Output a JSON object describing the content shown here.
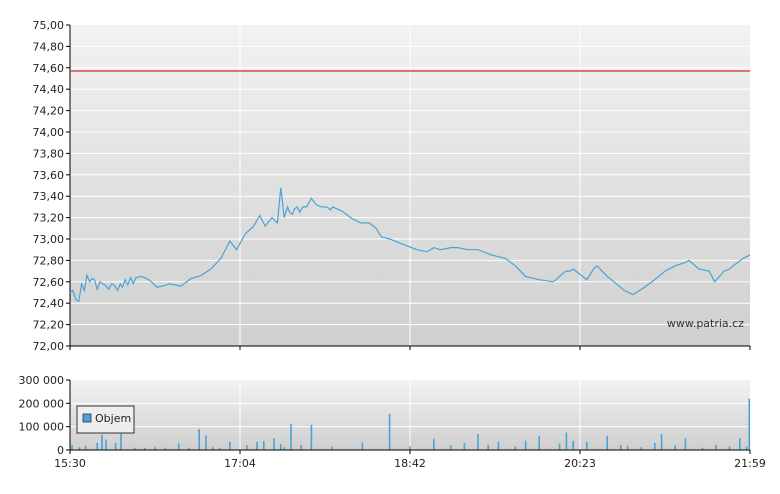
{
  "watermark": "www.patria.cz",
  "colors": {
    "price_line": "#4aa3d4",
    "reference_line": "#d03030",
    "volume_bar": "#4aa3d4",
    "grid": "#ffffff",
    "panel_top": "#f2f2f2",
    "panel_bottom": "#cfcfcf"
  },
  "chart_data": [
    {
      "type": "line",
      "name": "price",
      "ylim": [
        72.0,
        75.0
      ],
      "y_ticks": [
        "75,00",
        "74,80",
        "74,60",
        "74,40",
        "74,20",
        "74,00",
        "73,80",
        "73,60",
        "73,40",
        "73,20",
        "73,00",
        "72,80",
        "72,60",
        "72,40",
        "72,20",
        "72,00"
      ],
      "reference_value": 74.57,
      "x_ticks": [
        "15:30",
        "17:04",
        "18:42",
        "20:23",
        "21:59"
      ],
      "series": [
        {
          "x": [
            0,
            0.004,
            0.009,
            0.013,
            0.017,
            0.021,
            0.025,
            0.029,
            0.032,
            0.036,
            0.04,
            0.044,
            0.048,
            0.052,
            0.057,
            0.061,
            0.065,
            0.07,
            0.074,
            0.077,
            0.081,
            0.085,
            0.089,
            0.093,
            0.097,
            0.105,
            0.113,
            0.12,
            0.128,
            0.136,
            0.147,
            0.163,
            0.178,
            0.193,
            0.207,
            0.222,
            0.235,
            0.245,
            0.258,
            0.27,
            0.279,
            0.287,
            0.297,
            0.305,
            0.31,
            0.315,
            0.32,
            0.323,
            0.327,
            0.33,
            0.334,
            0.338,
            0.342,
            0.348,
            0.355,
            0.362,
            0.37,
            0.376,
            0.38,
            0.383,
            0.386,
            0.4,
            0.415,
            0.428,
            0.44,
            0.45,
            0.458,
            0.47,
            0.49,
            0.51,
            0.525,
            0.535,
            0.545,
            0.56,
            0.57,
            0.585,
            0.6,
            0.62,
            0.64,
            0.655,
            0.67,
            0.69,
            0.71,
            0.715,
            0.72,
            0.725,
            0.73,
            0.735,
            0.74,
            0.76,
            0.77,
            0.775,
            0.79,
            0.8,
            0.815,
            0.828,
            0.845,
            0.86,
            0.875,
            0.89,
            0.905,
            0.91,
            0.925,
            0.94,
            0.948,
            0.955,
            0.962,
            0.97,
            0.975,
            0.982,
            0.99,
            1.0
          ],
          "y": [
            72.5,
            72.52,
            72.43,
            72.42,
            72.58,
            72.52,
            72.66,
            72.6,
            72.63,
            72.62,
            72.53,
            72.6,
            72.58,
            72.57,
            72.53,
            72.58,
            72.57,
            72.52,
            72.58,
            72.55,
            72.62,
            72.57,
            72.64,
            72.58,
            72.64,
            72.65,
            72.63,
            72.6,
            72.55,
            72.56,
            72.58,
            72.56,
            72.63,
            72.66,
            72.72,
            72.82,
            72.98,
            72.9,
            73.05,
            73.12,
            73.22,
            73.12,
            73.2,
            73.15,
            73.48,
            73.2,
            73.3,
            73.25,
            73.23,
            73.28,
            73.3,
            73.25,
            73.3,
            73.3,
            73.38,
            73.32,
            73.3,
            73.3,
            73.29,
            73.27,
            73.3,
            73.26,
            73.19,
            73.15,
            73.15,
            73.1,
            73.02,
            73.0,
            72.95,
            72.9,
            72.88,
            72.92,
            72.9,
            72.92,
            72.92,
            72.9,
            72.9,
            72.85,
            72.82,
            72.75,
            72.65,
            72.62,
            72.6,
            72.62,
            72.65,
            72.68,
            72.7,
            72.7,
            72.72,
            72.62,
            72.72,
            72.75,
            72.65,
            72.6,
            72.52,
            72.48,
            72.55,
            72.62,
            72.7,
            72.75,
            72.78,
            72.8,
            72.72,
            72.7,
            72.6,
            72.65,
            72.7,
            72.72,
            72.75,
            72.78,
            72.82,
            72.85
          ]
        }
      ]
    },
    {
      "type": "bar",
      "name": "volume",
      "ylim": [
        0,
        300000
      ],
      "y_ticks": [
        "300 000",
        "200 000",
        "100 000",
        "0"
      ],
      "x_ticks": [
        "15:30",
        "17:04",
        "18:42",
        "20:23",
        "21:59"
      ],
      "legend": {
        "label": "Objem",
        "placement": "left"
      },
      "series": [
        {
          "name": "Objem",
          "x": [
            0.003,
            0.014,
            0.023,
            0.04,
            0.047,
            0.053,
            0.067,
            0.075,
            0.095,
            0.11,
            0.125,
            0.14,
            0.16,
            0.175,
            0.19,
            0.2,
            0.21,
            0.22,
            0.235,
            0.26,
            0.275,
            0.285,
            0.3,
            0.31,
            0.315,
            0.325,
            0.34,
            0.355,
            0.385,
            0.43,
            0.47,
            0.5,
            0.535,
            0.56,
            0.58,
            0.6,
            0.615,
            0.63,
            0.655,
            0.67,
            0.69,
            0.72,
            0.73,
            0.74,
            0.76,
            0.79,
            0.81,
            0.82,
            0.84,
            0.86,
            0.87,
            0.89,
            0.905,
            0.93,
            0.95,
            0.97,
            0.985,
            0.995,
            0.999
          ],
          "values": [
            22000,
            12000,
            18000,
            30000,
            65000,
            45000,
            30000,
            70000,
            10000,
            8000,
            12000,
            9000,
            28000,
            10000,
            90000,
            63000,
            12000,
            8000,
            35000,
            22000,
            35000,
            38000,
            50000,
            25000,
            12000,
            112000,
            22000,
            108000,
            15000,
            32000,
            155000,
            15000,
            48000,
            20000,
            30000,
            68000,
            22000,
            36000,
            15000,
            40000,
            60000,
            28000,
            75000,
            40000,
            35000,
            60000,
            22000,
            18000,
            12000,
            30000,
            68000,
            20000,
            50000,
            10000,
            22000,
            15000,
            50000,
            15000,
            220000
          ]
        }
      ]
    }
  ]
}
